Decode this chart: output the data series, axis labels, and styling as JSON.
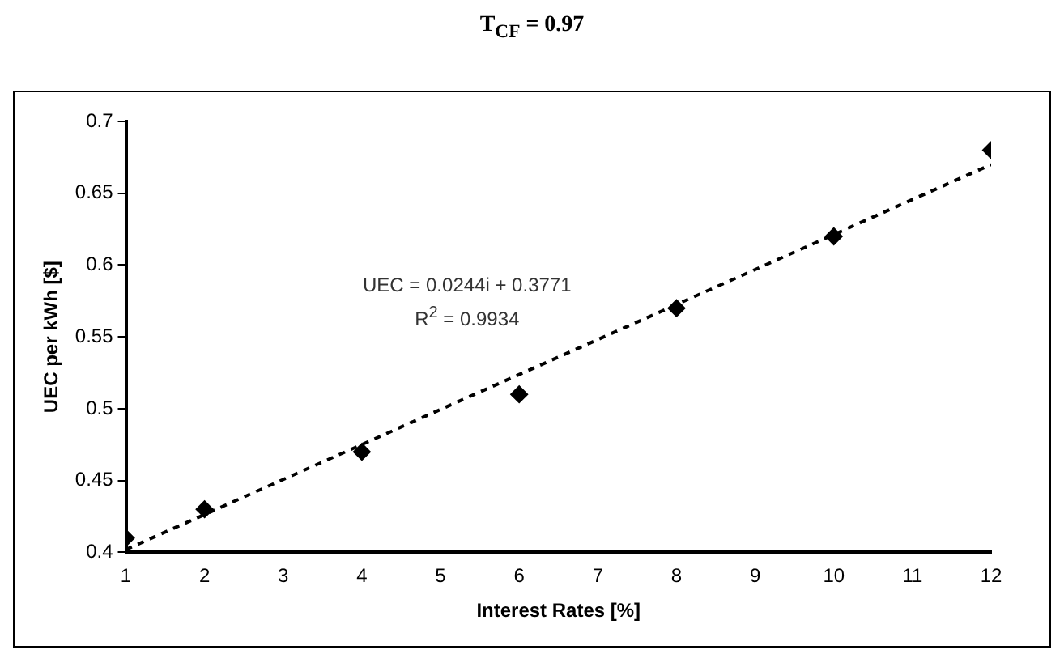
{
  "chart_data": {
    "type": "scatter",
    "title": "T$_{CF}$ = 0.97",
    "xlabel": "Interest Rates [%]",
    "ylabel": "UEC per kWh [$]",
    "annotations": [
      "UEC = 0.0244i + 0.3771",
      "R$^{2}$ = 0.9934"
    ],
    "series": [
      {
        "color": "#000000",
        "marker": "diamond",
        "x": [
          1,
          2,
          4,
          6,
          8,
          10,
          12
        ],
        "values": [
          0.41,
          0.43,
          0.47,
          0.51,
          0.57,
          0.62,
          0.68
        ]
      },
      {
        "type": "line",
        "color": "#000000",
        "marker": "none",
        "line_style": "dashed",
        "x": [
          1,
          12
        ],
        "values": [
          0.402,
          0.67
        ]
      }
    ],
    "xlim": [
      1,
      12
    ],
    "xticks": [
      1,
      2,
      3,
      4,
      5,
      6,
      7,
      8,
      9,
      10,
      11,
      12
    ],
    "ylim": [
      0.4,
      0.7
    ],
    "yticks": [
      0.4,
      0.45,
      0.5,
      0.55,
      0.6,
      0.65,
      0.7
    ],
    "grid": false,
    "legend": false
  }
}
